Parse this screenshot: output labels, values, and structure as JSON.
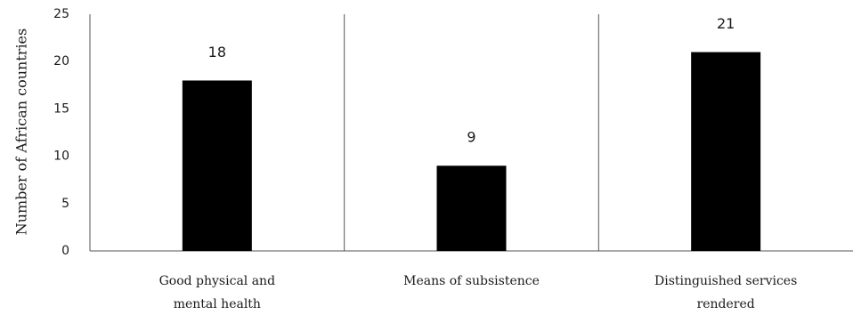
{
  "chart_data": {
    "type": "bar",
    "title": "",
    "xlabel": "",
    "ylabel": "Number of African countries",
    "categories": [
      [
        "Good physical and",
        "mental health"
      ],
      [
        "Means of subsistence"
      ],
      [
        "Distinguished services",
        "rendered"
      ]
    ],
    "values": [
      18,
      9,
      21
    ],
    "ylim": [
      0,
      25
    ],
    "yticks": [
      0,
      5,
      10,
      15,
      20,
      25
    ],
    "grid": false,
    "legend": "none",
    "bar_color": "#000000"
  }
}
